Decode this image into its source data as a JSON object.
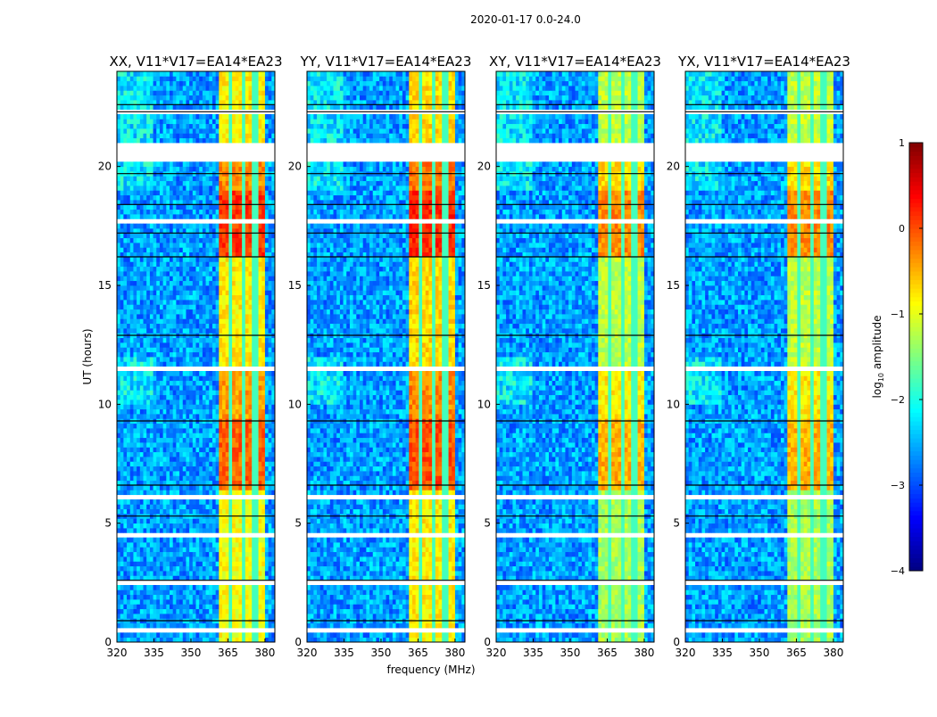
{
  "chart_data": {
    "type": "heatmap",
    "title": "2020-01-17 0.0-24.0",
    "xlabel": "frequency (MHz)",
    "ylabel": "UT (hours)",
    "xlim": [
      320,
      384
    ],
    "ylim": [
      0,
      24
    ],
    "xticks": [
      "320",
      "335",
      "350",
      "365",
      "380"
    ],
    "yticks": [
      "0",
      "5",
      "10",
      "15",
      "20"
    ],
    "panels": [
      {
        "title": "XX, V11*V17=EA14*EA23",
        "rfi_boost": 0
      },
      {
        "title": "YY, V11*V17=EA14*EA23",
        "rfi_boost": 0.1
      },
      {
        "title": "XY, V11*V17=EA14*EA23",
        "rfi_boost": -0.4
      },
      {
        "title": "YX, V11*V17=EA14*EA23",
        "rfi_boost": -0.4
      }
    ],
    "background_log10_amplitude": -2.6,
    "rfi_band_mhz": [
      361,
      380
    ],
    "rfi_channel_gaps_mhz": [
      366,
      371,
      376
    ],
    "rfi_time_levels": [
      {
        "from": 0,
        "to": 6.5,
        "value": -0.9
      },
      {
        "from": 6.5,
        "to": 9.5,
        "value": -0.1
      },
      {
        "from": 9.5,
        "to": 11.5,
        "value": -0.4
      },
      {
        "from": 11.5,
        "to": 16.2,
        "value": -0.8
      },
      {
        "from": 16.2,
        "to": 19.0,
        "value": 0.1
      },
      {
        "from": 19.0,
        "to": 20.2,
        "value": -0.3
      },
      {
        "from": 21.1,
        "to": 24,
        "value": -0.8
      }
    ],
    "flagged_hours": [
      [
        20.2,
        21.1
      ],
      [
        22.3,
        22.45
      ],
      [
        4.4,
        4.6
      ],
      [
        1.35,
        1.5
      ],
      [
        14.6,
        14.7
      ],
      [
        13.0,
        13.1
      ],
      [
        11.45,
        11.55
      ],
      [
        6.1,
        6.2
      ],
      [
        2.45,
        2.55
      ],
      [
        0.45,
        0.55
      ],
      [
        17.7,
        17.8
      ],
      [
        18.8,
        18.9
      ]
    ],
    "black_lines_hours": [
      22.6,
      22.3,
      19.7,
      18.4,
      17.2,
      16.2,
      12.9,
      9.3,
      6.6,
      5.3,
      2.6,
      0.9
    ],
    "colorbar": {
      "label": "log10 amplitude",
      "label_main": "log",
      "label_sub": "10",
      "label_rest": " amplitude",
      "range": [
        -4,
        1
      ],
      "ticks": [
        "1",
        "0",
        "−1",
        "−2",
        "−3",
        "−4"
      ],
      "colormap": "jet"
    }
  }
}
